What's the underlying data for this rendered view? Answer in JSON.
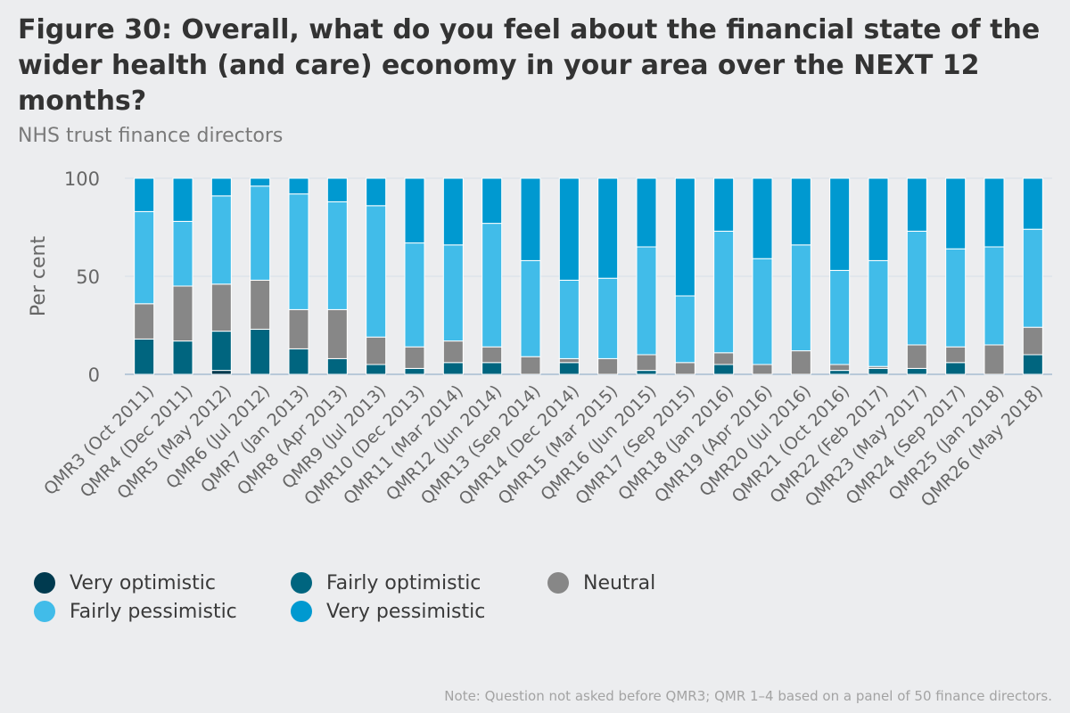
{
  "title": "Figure 30: Overall, what do you feel about the financial state of the wider health (and care) economy in your area over the NEXT 12 months?",
  "subtitle": "NHS trust finance directors",
  "note": "Note: Question not asked before QMR3; QMR 1–4 based on a panel of 50 finance directors.",
  "chart_data": {
    "type": "bar",
    "stacked": true,
    "ylabel": "Per cent",
    "ylim": [
      0,
      100
    ],
    "yticks": [
      0,
      50,
      100
    ],
    "grid": true,
    "legend_position": "bottom",
    "categories": [
      "QMR3 (Oct 2011)",
      "QMR4 (Dec 2011)",
      "QMR5 (May 2012)",
      "QMR6 (Jul 2012)",
      "QMR7 (Jan 2013)",
      "QMR8 (Apr 2013)",
      "QMR9 (Jul 2013)",
      "QMR10 (Dec 2013)",
      "QMR11 (Mar 2014)",
      "QMR12 (Jun 2014)",
      "QMR13 (Sep 2014)",
      "QMR14 (Dec 2014)",
      "QMR15 (Mar 2015)",
      "QMR16 (Jun 2015)",
      "QMR17 (Sep 2015)",
      "QMR18 (Jan 2016)",
      "QMR19 (Apr 2016)",
      "QMR20 (Jul 2016)",
      "QMR21 (Oct 2016)",
      "QMR22 (Feb 2017)",
      "QMR23 (May 2017)",
      "QMR24 (Sep 2017)",
      "QMR25 (Jan 2018)",
      "QMR26 (May 2018)"
    ],
    "series": [
      {
        "name": "Very optimistic",
        "color": "#003a4f",
        "values": [
          0,
          0,
          2,
          0,
          0,
          0,
          0,
          0,
          0,
          0,
          0,
          0,
          0,
          0,
          0,
          0,
          0,
          0,
          0,
          0,
          0,
          0,
          0,
          0
        ]
      },
      {
        "name": "Fairly optimistic",
        "color": "#00657f",
        "values": [
          18,
          17,
          20,
          23,
          13,
          8,
          5,
          3,
          6,
          6,
          0,
          6,
          0,
          2,
          0,
          5,
          0,
          0,
          2,
          3,
          3,
          6,
          0,
          10
        ]
      },
      {
        "name": "Neutral",
        "color": "#878787",
        "values": [
          18,
          28,
          24,
          25,
          20,
          25,
          14,
          11,
          11,
          8,
          9,
          2,
          8,
          8,
          6,
          6,
          5,
          12,
          3,
          1,
          12,
          8,
          15,
          14
        ]
      },
      {
        "name": "Fairly pessimistic",
        "color": "#41bce9",
        "values": [
          47,
          33,
          45,
          48,
          59,
          55,
          67,
          53,
          49,
          63,
          49,
          40,
          41,
          55,
          34,
          62,
          54,
          54,
          48,
          54,
          58,
          50,
          50,
          50
        ]
      },
      {
        "name": "Very pessimistic",
        "color": "#0099d0",
        "values": [
          17,
          22,
          9,
          4,
          8,
          12,
          14,
          33,
          34,
          23,
          42,
          52,
          51,
          35,
          60,
          27,
          41,
          34,
          47,
          42,
          27,
          36,
          35,
          26
        ]
      }
    ]
  }
}
